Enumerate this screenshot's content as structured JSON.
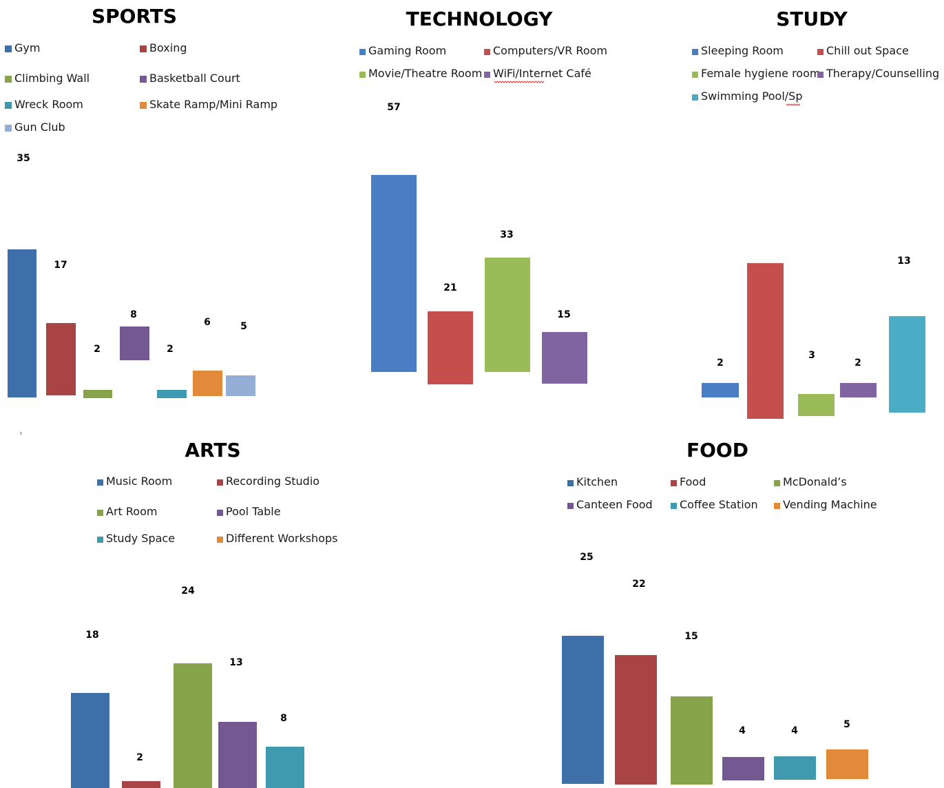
{
  "chart_data": [
    {
      "type": "bar",
      "title": "SPORTS",
      "categories": [
        "Gym",
        "Boxing",
        "Climbing Wall",
        "Basketball Court",
        "Wreck Room",
        "Skate Ramp/Mini Ramp",
        "Gun Club"
      ],
      "values": [
        35,
        17,
        2,
        8,
        2,
        6,
        5
      ],
      "colors": [
        "#3F6FA8",
        "#A94444",
        "#88A44A",
        "#735891",
        "#3F9AAF",
        "#E18A3A",
        "#95AED6"
      ],
      "legend": "top",
      "grid": false
    },
    {
      "type": "bar",
      "title": "TECHNOLOGY",
      "categories": [
        "Gaming Room",
        "Computers/VR Room",
        "Movie/Theatre Room",
        "WiFi/Internet Café"
      ],
      "values": [
        57,
        21,
        33,
        15
      ],
      "colors": [
        "#4A7EC4",
        "#C44F4D",
        "#9BBB59",
        "#8064A2"
      ],
      "legend": "top",
      "grid": false
    },
    {
      "type": "bar",
      "title": "STUDY",
      "categories": [
        "Sleeping Room",
        "Chill out Space",
        "Female hygiene room",
        "Therapy/Counselling",
        "Swimming Pool/Sp"
      ],
      "values": [
        2,
        "",
        3,
        2,
        13
      ],
      "colors": [
        "#4A7EC4",
        "#C44F4D",
        "#9BBB59",
        "#8064A2",
        "#4BACC6"
      ],
      "legend": "top",
      "grid": false
    },
    {
      "type": "bar",
      "title": "ARTS",
      "categories": [
        "Music Room",
        "Recording Studio",
        "Art Room",
        "Pool Table",
        "Study Space",
        "Different Workshops"
      ],
      "values": [
        18,
        2,
        24,
        13,
        8,
        ""
      ],
      "colors": [
        "#3F6FA8",
        "#A94444",
        "#88A44A",
        "#735891",
        "#3F9AAF",
        "#E18A3A"
      ],
      "legend": "top",
      "grid": false
    },
    {
      "type": "bar",
      "title": "FOOD",
      "categories": [
        "Kitchen",
        "Food",
        "McDonald’s",
        "Canteen Food",
        "Coffee Station",
        "Vending Machine"
      ],
      "values": [
        25,
        22,
        15,
        4,
        4,
        5
      ],
      "colors": [
        "#3F6FA8",
        "#A94444",
        "#88A44A",
        "#735891",
        "#3F9AAF",
        "#E18A3A"
      ],
      "legend": "top",
      "grid": false
    }
  ]
}
